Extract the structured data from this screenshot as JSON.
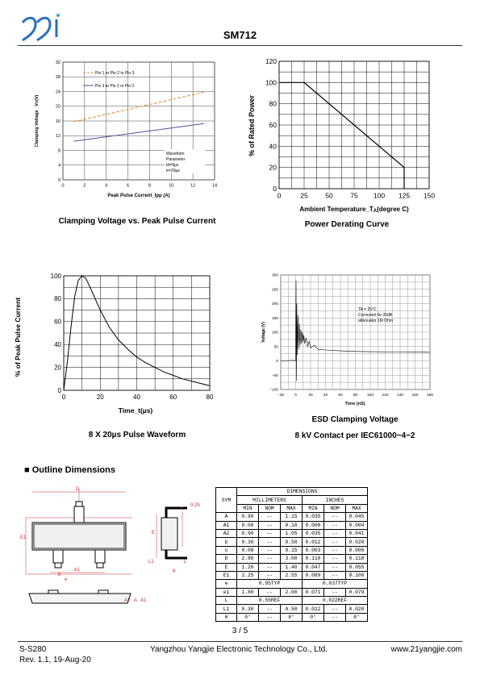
{
  "header": {
    "title": "SM712"
  },
  "charts": {
    "clamping": {
      "caption": "Clamping Voltage vs. Peak Pulse Current",
      "xlabel": "Peak Pulse Current_Ipp (A)",
      "ylabel": "Clamping Voltage _Vc(V)",
      "xticks": [
        "0",
        "2",
        "4",
        "6",
        "8",
        "10",
        "12",
        "14"
      ],
      "yticks": [
        "0",
        "4",
        "8",
        "12",
        "16",
        "20",
        "24",
        "28",
        "32"
      ],
      "legend1": "Pin 1 or Pin 2 to Pin 3",
      "legend2": "Pin 3 to Pin 1 or Pin 2",
      "note": [
        "Waveform",
        "Parameter",
        "td=8µs",
        "tr=20µs"
      ]
    },
    "derating": {
      "caption": "Power Derating Curve",
      "xlabel_a": "Ambient  Temperature_T",
      "xlabel_sub": "A",
      "xlabel_b": "(degree C)",
      "ylabel": "% of Rated Power",
      "xticks": [
        "0",
        "25",
        "50",
        "75",
        "100",
        "125",
        "150"
      ],
      "yticks": [
        "0",
        "20",
        "40",
        "60",
        "80",
        "100",
        "120"
      ]
    },
    "pulse": {
      "caption": "8 X 20µs Pulse Waveform",
      "xlabel": "Time_t(µs)",
      "ylabel": "% of Peak Pulse Current",
      "xticks": [
        "0",
        "20",
        "40",
        "60",
        "80"
      ],
      "yticks": [
        "0",
        "20",
        "40",
        "60",
        "80",
        "100"
      ]
    },
    "esd": {
      "caption1": "ESD Clamping Voltage",
      "caption2": "8 kV Contact per IEC61000−4−2",
      "xlabel": "Time (nS)",
      "ylabel": "Voltage (V)",
      "xticks": [
        "−20",
        "0",
        "20",
        "40",
        "60",
        "80",
        "100",
        "120",
        "140",
        "160",
        "180"
      ],
      "yticks": [
        "−100",
        "−50",
        "0",
        "50",
        "100",
        "150",
        "200",
        "250",
        "300"
      ],
      "note": [
        "TA = 25°C",
        "Corrected for 20dB",
        "attenuator 1M Ohm"
      ]
    }
  },
  "chart_data": [
    {
      "type": "line",
      "title": "Clamping Voltage vs. Peak Pulse Current",
      "xlabel": "Peak Pulse Current_Ipp (A)",
      "ylabel": "Clamping Voltage _Vc(V)",
      "xlim": [
        0,
        14
      ],
      "ylim": [
        0,
        32
      ],
      "series": [
        {
          "name": "Pin 1 or Pin 2 to Pin 3",
          "x": [
            1,
            13
          ],
          "y": [
            15.8,
            23.8
          ],
          "color": "#e08a2a"
        },
        {
          "name": "Pin 3 to Pin 1 or Pin 2",
          "x": [
            1,
            13
          ],
          "y": [
            10.5,
            15.3
          ],
          "color": "#5a4aa0"
        }
      ]
    },
    {
      "type": "line",
      "title": "Power Derating Curve",
      "xlabel": "Ambient Temperature_TA(degree C)",
      "ylabel": "% of Rated Power",
      "xlim": [
        0,
        150
      ],
      "ylim": [
        0,
        120
      ],
      "series": [
        {
          "x": [
            0,
            25,
            125,
            125
          ],
          "y": [
            100,
            100,
            20,
            0
          ]
        }
      ]
    },
    {
      "type": "line",
      "title": "8 X 20µs Pulse Waveform",
      "xlabel": "Time_t(µs)",
      "ylabel": "% of Peak Pulse Current",
      "xlim": [
        0,
        80
      ],
      "ylim": [
        0,
        100
      ],
      "series": [
        {
          "x": [
            0,
            2,
            4,
            6,
            8,
            10,
            12,
            15,
            20,
            25,
            30,
            35,
            40,
            45,
            50,
            55,
            60,
            65,
            70,
            75,
            80
          ],
          "y": [
            0,
            25,
            55,
            82,
            96,
            100,
            98,
            88,
            70,
            55,
            44,
            36,
            29,
            24,
            20,
            16,
            13,
            10,
            8,
            6,
            4
          ]
        }
      ]
    },
    {
      "type": "line",
      "title": "ESD Clamping Voltage",
      "xlabel": "Time (nS)",
      "ylabel": "Voltage (V)",
      "xlim": [
        -20,
        180
      ],
      "ylim": [
        -100,
        300
      ],
      "series": [
        {
          "x": [
            -20,
            -2,
            0,
            0.5,
            1,
            1.5,
            2,
            3,
            4,
            5,
            6,
            7,
            8,
            9,
            10,
            11,
            12,
            14,
            16,
            18,
            20,
            25,
            30,
            40,
            60,
            80,
            100,
            140,
            180
          ],
          "y": [
            0,
            2,
            0,
            280,
            -70,
            200,
            20,
            160,
            40,
            130,
            55,
            110,
            60,
            100,
            65,
            90,
            60,
            80,
            50,
            70,
            45,
            55,
            40,
            38,
            35,
            33,
            32,
            31,
            30
          ]
        }
      ]
    }
  ],
  "section": {
    "label": "■ Outline Dimensions"
  },
  "drawing": {
    "labels": {
      "D": "D",
      "E": "E",
      "E1": "E1",
      "e": "e",
      "e1": "e1",
      "b": "b",
      "A": "A",
      "A1": "A1",
      "A2": "A2",
      "L": "L",
      "L1": "L1",
      "c": "c",
      "theta": "θ",
      "gauge": "0.25"
    }
  },
  "table": {
    "header": {
      "sym": "SYM",
      "dimensions": "DIMENSIONS",
      "mm": "MILLIMETERS",
      "inch": "INCHES",
      "min": "MIN",
      "nom": "NOM",
      "max": "MAX"
    },
    "rows": [
      {
        "sym": "A",
        "mm": [
          "0.90",
          "--",
          "1.15"
        ],
        "in": [
          "0.035",
          "--",
          "0.045"
        ]
      },
      {
        "sym": "A1",
        "mm": [
          "0.00",
          "--",
          "0.10"
        ],
        "in": [
          "0.000",
          "--",
          "0.004"
        ]
      },
      {
        "sym": "A2",
        "mm": [
          "0.90",
          "--",
          "1.05"
        ],
        "in": [
          "0.035",
          "--",
          "0.041"
        ]
      },
      {
        "sym": "b",
        "mm": [
          "0.30",
          "--",
          "0.50"
        ],
        "in": [
          "0.012",
          "--",
          "0.020"
        ]
      },
      {
        "sym": "c",
        "mm": [
          "0.08",
          "--",
          "0.15"
        ],
        "in": [
          "0.003",
          "--",
          "0.006"
        ]
      },
      {
        "sym": "D",
        "mm": [
          "2.80",
          "--",
          "3.00"
        ],
        "in": [
          "0.110",
          "--",
          "0.118"
        ]
      },
      {
        "sym": "E",
        "mm": [
          "1.20",
          "--",
          "1.40"
        ],
        "in": [
          "0.047",
          "--",
          "0.055"
        ]
      },
      {
        "sym": "E1",
        "mm": [
          "2.25",
          "--",
          "2.55"
        ],
        "in": [
          "0.089",
          "--",
          "0.100"
        ]
      },
      {
        "sym": "e",
        "mm_span": "0.95TYP",
        "in_span": "0.037TYP"
      },
      {
        "sym": "e1",
        "mm": [
          "1.80",
          "--",
          "2.00"
        ],
        "in": [
          "0.071",
          "--",
          "0.079"
        ]
      },
      {
        "sym": "L",
        "mm_span": "0.55REF",
        "in_span": "0.022REF"
      },
      {
        "sym": "L1",
        "mm": [
          "0.30",
          "--",
          "0.50"
        ],
        "in": [
          "0.012",
          "--",
          "0.020"
        ]
      },
      {
        "sym": "θ",
        "mm": [
          "0°",
          "--",
          "8°"
        ],
        "in": [
          "0°",
          "--",
          "8°"
        ]
      }
    ]
  },
  "page": {
    "number": "3 / 5"
  },
  "footer": {
    "doc_id": "S-S280",
    "company": "Yangzhou Yangjie Electronic Technology Co., Ltd.",
    "website": "www.21yangjie.com",
    "revision": "Rev. 1.1, 19-Aug-20"
  }
}
